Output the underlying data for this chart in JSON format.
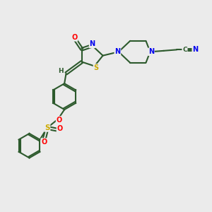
{
  "background_color": "#ebebeb",
  "bond_color": "#2d5a2d",
  "atom_colors": {
    "O": "#ff0000",
    "N": "#0000ee",
    "S": "#ccaa00",
    "C": "#2d5a2d",
    "H": "#2d5a2d"
  },
  "figsize": [
    3.0,
    3.0
  ],
  "dpi": 100,
  "xlim": [
    0,
    10
  ],
  "ylim": [
    0,
    10
  ]
}
